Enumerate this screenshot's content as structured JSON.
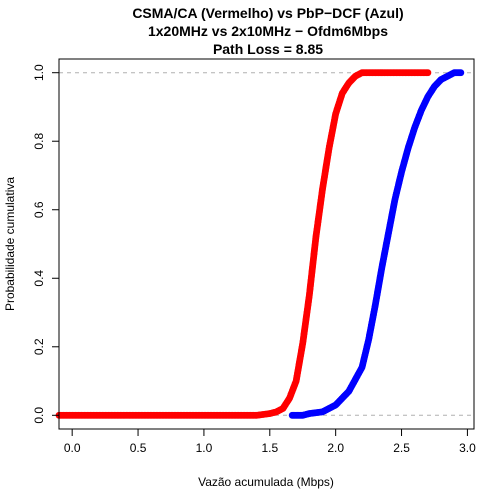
{
  "chart_data": {
    "type": "line",
    "title": [
      "CSMA/CA (Vermelho) vs PbP−DCF (Azul)",
      "1x20MHz vs 2x10MHz − Ofdm6Mbps",
      "Path Loss = 8.85"
    ],
    "xlabel": "Vazão acumulada (Mbps)",
    "ylabel": "Probabilidade cumulativa",
    "xlim": [
      -0.1,
      3.05
    ],
    "ylim": [
      -0.04,
      1.04
    ],
    "x_ticks": [
      "0.0",
      "0.5",
      "1.0",
      "1.5",
      "2.0",
      "2.5",
      "3.0"
    ],
    "y_ticks": [
      "0.0",
      "0.2",
      "0.4",
      "0.6",
      "0.8",
      "1.0"
    ],
    "reference_lines_y": [
      0,
      1
    ],
    "grid": false,
    "series": [
      {
        "color": "#ff0000",
        "x": [
          -0.1,
          1.4,
          1.5,
          1.55,
          1.6,
          1.65,
          1.7,
          1.75,
          1.8,
          1.85,
          1.9,
          1.95,
          2.0,
          2.05,
          2.1,
          2.15,
          2.2,
          2.7
        ],
        "y": [
          0.0,
          0.0,
          0.005,
          0.01,
          0.02,
          0.05,
          0.1,
          0.21,
          0.35,
          0.52,
          0.66,
          0.78,
          0.88,
          0.94,
          0.97,
          0.99,
          1.0,
          1.0
        ]
      },
      {
        "color": "#0000ff",
        "x": [
          1.67,
          1.75,
          1.8,
          1.9,
          2.0,
          2.1,
          2.2,
          2.25,
          2.3,
          2.35,
          2.4,
          2.45,
          2.5,
          2.55,
          2.6,
          2.65,
          2.7,
          2.75,
          2.8,
          2.85,
          2.9,
          2.95
        ],
        "y": [
          0.0,
          0.0,
          0.005,
          0.01,
          0.03,
          0.07,
          0.14,
          0.22,
          0.32,
          0.43,
          0.53,
          0.63,
          0.71,
          0.78,
          0.84,
          0.89,
          0.93,
          0.96,
          0.98,
          0.99,
          1.0,
          1.0
        ]
      }
    ]
  }
}
